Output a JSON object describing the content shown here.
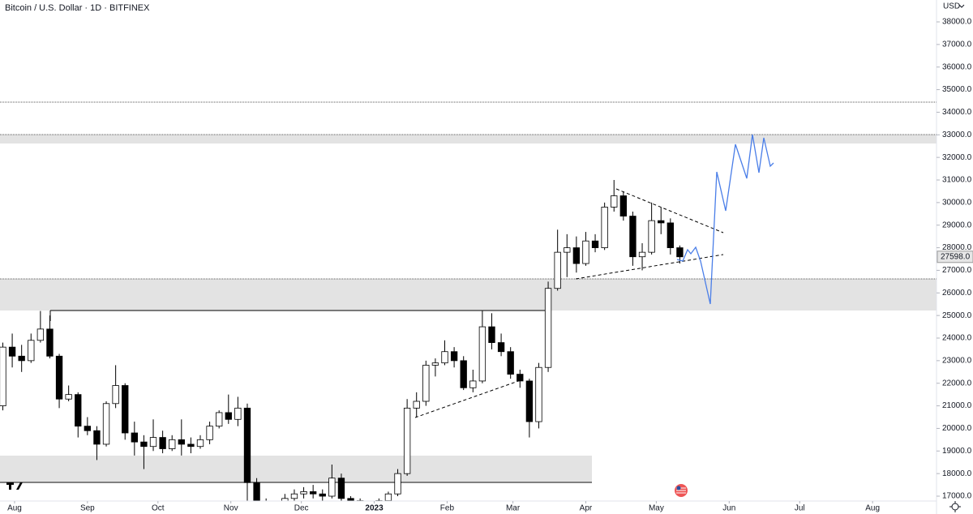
{
  "chart_data": {
    "type": "candlestick",
    "title": "Bitcoin / U.S. Dollar · 1D · BITFINEX",
    "currency": "USD",
    "last_price": {
      "value": 27598,
      "label": "27598.0"
    },
    "up_color": "#ffffff",
    "down_color": "#000000",
    "x": [
      -5,
      -1,
      3,
      7,
      11,
      15,
      19,
      23,
      27,
      31,
      35,
      39,
      43,
      47,
      51,
      55,
      59,
      63,
      67,
      71,
      75,
      79,
      83,
      87,
      91,
      95,
      99,
      103,
      107,
      111,
      115,
      119,
      123,
      127,
      131,
      135,
      139,
      143,
      147,
      151,
      155,
      159,
      163,
      167,
      171,
      175,
      179,
      183,
      187,
      191,
      195,
      199,
      203,
      207,
      211,
      215,
      219,
      223,
      227,
      231,
      235,
      239,
      243,
      247,
      251,
      255,
      259,
      263,
      267,
      271,
      275,
      279,
      283
    ],
    "open": [
      21000,
      23600,
      23200,
      23000,
      23900,
      24400,
      23200,
      21300,
      21500,
      20100,
      19900,
      19300,
      21100,
      21900,
      19800,
      19400,
      19200,
      19600,
      19100,
      19500,
      19300,
      19200,
      19500,
      20100,
      20700,
      20400,
      20900,
      17600,
      16600,
      16500,
      16700,
      16900,
      17100,
      17200,
      17100,
      17000,
      17800,
      16900,
      16800,
      16700,
      16600,
      16800,
      17100,
      18000,
      20900,
      21200,
      22800,
      22900,
      23400,
      23000,
      21800,
      22100,
      24500,
      23800,
      23400,
      22400,
      22100,
      20300,
      22700,
      26200,
      27800,
      28000,
      27300,
      28300,
      28000,
      29800,
      30300,
      29400,
      27600,
      27800,
      29200,
      29100,
      28000
    ],
    "high": [
      23800,
      24200,
      23700,
      24200,
      25200,
      25000,
      23300,
      21900,
      21600,
      20500,
      20100,
      21200,
      22800,
      22000,
      20300,
      19700,
      20400,
      19900,
      19700,
      20400,
      19600,
      19700,
      20300,
      20800,
      21500,
      21400,
      21100,
      17800,
      16900,
      16800,
      17100,
      17300,
      17400,
      17500,
      17300,
      18400,
      18000,
      17000,
      16900,
      16800,
      16900,
      17200,
      18200,
      21300,
      21600,
      23000,
      23100,
      23900,
      23600,
      23200,
      22600,
      25200,
      25100,
      24200,
      23600,
      22600,
      22200,
      22900,
      26500,
      28800,
      28600,
      28500,
      28700,
      28600,
      30000,
      31000,
      30500,
      29600,
      28200,
      30000,
      29800,
      29300,
      28100
    ],
    "low": [
      20800,
      22700,
      22500,
      22900,
      23800,
      23100,
      20900,
      21200,
      19600,
      19700,
      18600,
      19200,
      20900,
      19500,
      18800,
      18200,
      19000,
      18900,
      19000,
      18800,
      18900,
      19100,
      19300,
      20000,
      20200,
      20100,
      16800,
      15600,
      15800,
      16300,
      16400,
      16800,
      16900,
      16900,
      16800,
      16900,
      16700,
      16300,
      16500,
      16500,
      16500,
      16700,
      17000,
      17900,
      20500,
      21000,
      22300,
      22800,
      22700,
      21700,
      21600,
      22000,
      23500,
      23200,
      22200,
      21800,
      19600,
      20000,
      22500,
      26100,
      26700,
      26900,
      27200,
      27800,
      27900,
      29600,
      29200,
      27200,
      27000,
      27700,
      28600,
      27700,
      27300
    ],
    "close": [
      23600,
      23200,
      23000,
      23900,
      24400,
      23200,
      21300,
      21500,
      20100,
      19900,
      19300,
      21100,
      21900,
      19800,
      19400,
      19200,
      19600,
      19100,
      19500,
      19300,
      19200,
      19500,
      20100,
      20700,
      20400,
      20900,
      17600,
      16600,
      16500,
      16700,
      16900,
      17100,
      17200,
      17100,
      17000,
      17800,
      16900,
      16800,
      16700,
      16600,
      16800,
      17100,
      18000,
      20900,
      21200,
      22800,
      22900,
      23400,
      23000,
      21800,
      22100,
      24500,
      23800,
      23400,
      22400,
      22100,
      20300,
      22700,
      26200,
      27800,
      28000,
      27300,
      28300,
      28000,
      29800,
      30300,
      29400,
      27600,
      27800,
      29200,
      29100,
      28000,
      27598
    ],
    "xlim": [
      -6.2,
      392.2
    ],
    "xticks": [
      {
        "value": 0,
        "label": "Aug"
      },
      {
        "value": 31,
        "label": "Sep"
      },
      {
        "value": 61,
        "label": "Oct"
      },
      {
        "value": 92,
        "label": "Nov"
      },
      {
        "value": 122,
        "label": "Dec"
      },
      {
        "value": 153,
        "label": "2023"
      },
      {
        "value": 184,
        "label": "Feb"
      },
      {
        "value": 212,
        "label": "Mar"
      },
      {
        "value": 243,
        "label": "Apr"
      },
      {
        "value": 273,
        "label": "May"
      },
      {
        "value": 304,
        "label": "Jun"
      },
      {
        "value": 334,
        "label": "Jul"
      },
      {
        "value": 365,
        "label": "Aug"
      }
    ],
    "ylim": [
      16785,
      38969
    ],
    "yticks": [
      {
        "value": 17000,
        "label": "17000.0"
      },
      {
        "value": 18000,
        "label": "18000.0"
      },
      {
        "value": 19000,
        "label": "19000.0"
      },
      {
        "value": 20000,
        "label": "20000.0"
      },
      {
        "value": 21000,
        "label": "21000.0"
      },
      {
        "value": 22000,
        "label": "22000.0"
      },
      {
        "value": 23000,
        "label": "23000.0"
      },
      {
        "value": 24000,
        "label": "24000.0"
      },
      {
        "value": 25000,
        "label": "25000.0"
      },
      {
        "value": 26000,
        "label": "26000.0"
      },
      {
        "value": 27000,
        "label": "27000.0"
      },
      {
        "value": 28000,
        "label": "28000.0"
      },
      {
        "value": 29000,
        "label": "29000.0"
      },
      {
        "value": 30000,
        "label": "30000.0"
      },
      {
        "value": 31000,
        "label": "31000.0"
      },
      {
        "value": 32000,
        "label": "32000.0"
      },
      {
        "value": 33000,
        "label": "33000.0"
      },
      {
        "value": 34000,
        "label": "34000.0"
      },
      {
        "value": 35000,
        "label": "35000.0"
      },
      {
        "value": 36000,
        "label": "36000.0"
      },
      {
        "value": 37000,
        "label": "37000.0"
      },
      {
        "value": 38000,
        "label": "38000.0"
      }
    ]
  }
}
